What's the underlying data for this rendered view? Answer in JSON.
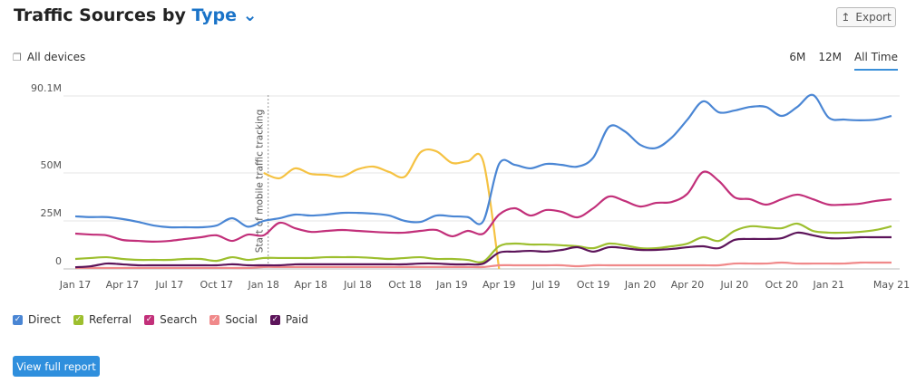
{
  "header": {
    "title": "Traffic Sources by",
    "title_link": "Type",
    "export": "Export",
    "devices": "All devices",
    "periods": [
      "6M",
      "12M",
      "All Time"
    ],
    "active_period": 2
  },
  "footer": {
    "button": "View full report"
  },
  "chart_data": {
    "type": "line",
    "annotation": {
      "text": "Start of mobile traffic tracking",
      "at": 12
    },
    "categories": [
      "Jan 17",
      null,
      null,
      "Apr 17",
      null,
      null,
      "Jul 17",
      null,
      null,
      "Oct 17",
      null,
      null,
      "Jan 18",
      null,
      null,
      "Apr 18",
      null,
      null,
      "Jul 18",
      null,
      null,
      "Oct 18",
      null,
      null,
      "Jan 19",
      null,
      null,
      "Apr 19",
      null,
      null,
      "Jul 19",
      null,
      null,
      "Oct 19",
      null,
      null,
      "Jan 20",
      null,
      null,
      "Apr 20",
      null,
      null,
      "Jul 20",
      null,
      null,
      "Oct 20",
      null,
      null,
      "Jan 21",
      null,
      null,
      null,
      "May 21"
    ],
    "ylim": [
      0,
      95
    ],
    "yticks": [
      0,
      {
        "value": 25,
        "label": "25M"
      },
      {
        "value": 50,
        "label": "50M"
      },
      {
        "value": 90.1,
        "label": "90.1M"
      }
    ],
    "grid": true,
    "series": [
      {
        "color": "#f5c242",
        "values": [
          null,
          null,
          null,
          null,
          null,
          null,
          null,
          null,
          null,
          null,
          null,
          null,
          50,
          47.2,
          52.4,
          49.5,
          49,
          48.1,
          51.9,
          53.3,
          50.5,
          48.1,
          60.8,
          61.3,
          55.2,
          56.1,
          55.7,
          0,
          null,
          null,
          null,
          null,
          null,
          null,
          null,
          null,
          null,
          null,
          null,
          null,
          null,
          null,
          null,
          null,
          null,
          null,
          null,
          null,
          null,
          null,
          null,
          null,
          null
        ]
      },
      {
        "name": "Direct",
        "color": "#4a86d4",
        "values": [
          27.4,
          27,
          27,
          26,
          24.5,
          22.6,
          21.7,
          21.7,
          21.7,
          22.6,
          26.4,
          22,
          25,
          26.4,
          28.3,
          27.8,
          28.3,
          29.2,
          29.2,
          28.8,
          27.8,
          25,
          24.5,
          27.8,
          27.4,
          27,
          25,
          54.7,
          54.2,
          52.4,
          54.7,
          54.2,
          53.3,
          58,
          74,
          71.7,
          64.6,
          63,
          68.4,
          77.8,
          87.3,
          81.6,
          82.5,
          84.4,
          84.4,
          79.7,
          84.4,
          90.6,
          78.8,
          77.8,
          77.4,
          77.8,
          79.7
        ]
      },
      {
        "name": "Referral",
        "color": "#9dbf2f",
        "values": [
          5.2,
          5.7,
          6.1,
          5.2,
          4.7,
          4.7,
          4.7,
          5.2,
          5.2,
          4.2,
          6.1,
          4.7,
          5.7,
          5.7,
          5.7,
          5.7,
          6.1,
          6.1,
          6.1,
          5.7,
          5.2,
          5.7,
          6.1,
          5.2,
          5.2,
          4.7,
          3.8,
          11.8,
          13.2,
          12.7,
          12.7,
          12.3,
          11.8,
          10.8,
          13.2,
          12.3,
          10.8,
          10.8,
          11.8,
          13.2,
          16.5,
          14.6,
          19.8,
          22.2,
          21.7,
          21.2,
          23.6,
          19.8,
          18.9,
          18.9,
          19.3,
          20.3,
          22.2
        ]
      },
      {
        "name": "Search",
        "color": "#c2307a",
        "values": [
          18.4,
          17.9,
          17.5,
          15.1,
          14.6,
          14.2,
          14.6,
          15.6,
          16.5,
          17.5,
          14.6,
          17.9,
          17.5,
          24,
          21.2,
          19.3,
          19.8,
          20.3,
          19.8,
          19.3,
          18.9,
          18.9,
          19.8,
          20.3,
          17,
          19.8,
          18.4,
          28.3,
          31.6,
          27.8,
          30.7,
          29.7,
          26.9,
          31.6,
          37.7,
          35.4,
          32.5,
          34.4,
          34.9,
          39.2,
          50.5,
          45.8,
          37.3,
          36.3,
          33.5,
          36.3,
          38.7,
          36.3,
          33.5,
          33.5,
          34,
          35.4,
          36.3
        ]
      },
      {
        "name": "Social",
        "color": "#f0898a",
        "values": [
          0.5,
          0.5,
          0.5,
          0.5,
          0.5,
          0.5,
          0.5,
          0.5,
          0.5,
          0.5,
          0.5,
          0.5,
          1,
          1,
          1,
          1,
          1,
          1,
          1,
          1,
          1,
          1,
          1,
          1,
          1,
          1,
          1,
          1.9,
          1.9,
          1.9,
          1.9,
          1.9,
          1.4,
          1.9,
          1.9,
          1.9,
          1.9,
          1.9,
          1.9,
          1.9,
          1.9,
          1.9,
          2.8,
          2.8,
          2.8,
          3.3,
          2.8,
          2.8,
          2.8,
          2.8,
          3.3,
          3.3,
          3.3
        ]
      },
      {
        "name": "Paid",
        "color": "#5c145a",
        "values": [
          0.9,
          1.4,
          2.8,
          2.4,
          1.9,
          1.9,
          1.9,
          1.9,
          1.9,
          1.9,
          2.4,
          1.9,
          1.9,
          1.9,
          2.4,
          2.4,
          2.4,
          2.4,
          2.4,
          2.4,
          2.4,
          2.4,
          2.8,
          2.8,
          2.4,
          2.4,
          2.8,
          8.5,
          9,
          9.4,
          9,
          9.9,
          11.3,
          9,
          11.3,
          10.8,
          9.9,
          9.9,
          10.4,
          11.3,
          11.8,
          10.8,
          15.1,
          15.6,
          15.6,
          16,
          18.9,
          17.5,
          16,
          16,
          16.5,
          16.5,
          16.5
        ]
      }
    ]
  }
}
